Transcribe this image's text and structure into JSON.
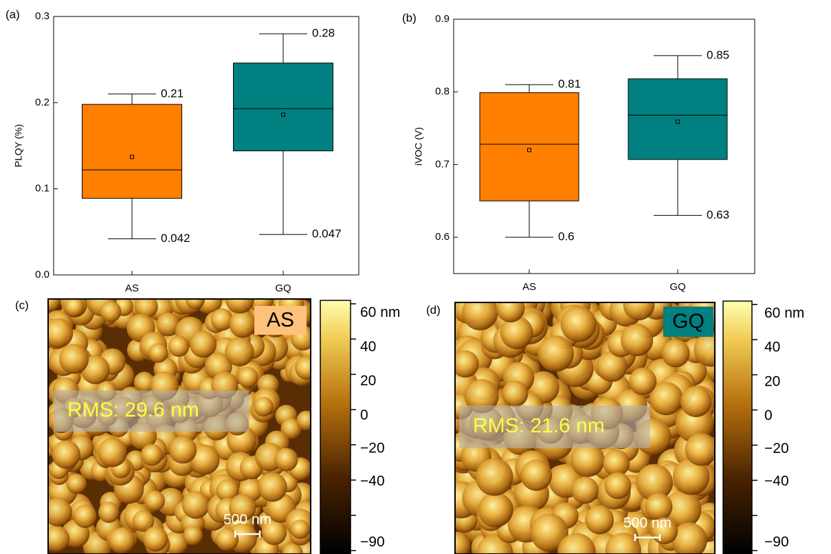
{
  "chart_data": [
    {
      "type": "box",
      "panel_label": "(a)",
      "ylabel": "PLQY (%)",
      "categories": [
        "AS",
        "GQ"
      ],
      "colors": [
        "#ff7f00",
        "#008080"
      ],
      "boxes": {
        "min": [
          0.042,
          0.047
        ],
        "q1": [
          0.089,
          0.144
        ],
        "median": [
          0.122,
          0.193
        ],
        "q3": [
          0.198,
          0.246
        ],
        "max": [
          0.21,
          0.28
        ],
        "mean": [
          0.137,
          0.186
        ]
      },
      "ylim": [
        0,
        0.3
      ],
      "yticks": [
        {
          "value": 0,
          "label": "0.0"
        },
        0.1,
        0.2,
        0.3
      ]
    },
    {
      "type": "box",
      "panel_label": "(b)",
      "ylabel": "iVOC (V)",
      "categories": [
        "AS",
        "GQ"
      ],
      "colors": [
        "#ff7f00",
        "#008080"
      ],
      "boxes": {
        "min": [
          0.6,
          0.63
        ],
        "q1": [
          0.65,
          0.707
        ],
        "median": [
          0.728,
          0.768
        ],
        "q3": [
          0.799,
          0.818
        ],
        "max": [
          0.81,
          0.85
        ],
        "mean": [
          0.72,
          0.759
        ]
      },
      "ylim": [
        0.55,
        0.9
      ],
      "yticks": [
        0.6,
        0.7,
        0.8,
        0.9
      ]
    }
  ],
  "afm_images": [
    {
      "panel_label": "(c)",
      "sample": "AS",
      "sample_color": "#ffc27a",
      "rms": "RMS: 29.6 nm",
      "scale_bar": "500 nm",
      "colorbar_ticks": [
        "60 nm",
        "40",
        "20",
        "0",
        "−20",
        "−40",
        "−90"
      ]
    },
    {
      "panel_label": "(d)",
      "sample": "GQ",
      "sample_color": "#008080",
      "rms": "RMS: 21.6 nm",
      "scale_bar": "500 nm",
      "colorbar_ticks": [
        "60 nm",
        "40",
        "20",
        "0",
        "−20",
        "−40",
        "−90"
      ]
    }
  ]
}
